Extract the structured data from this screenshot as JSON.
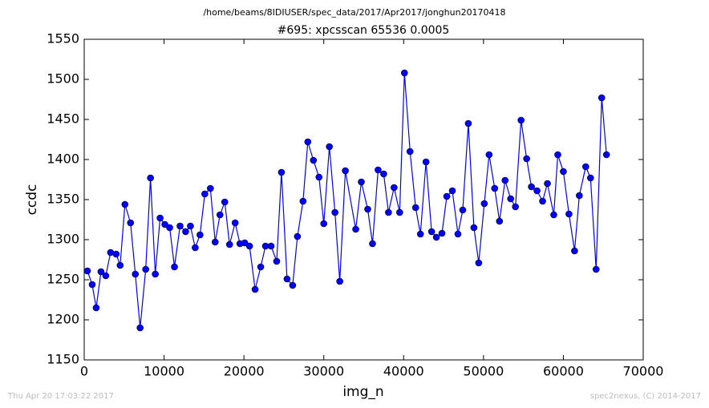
{
  "chart_data": {
    "type": "line",
    "path_title": "/home/beams/8IDIUSER/spec_data/2017/Apr2017/jonghun20170418",
    "title": "#695: xpcsscan 65536 0.0005",
    "x_label": "img_n",
    "y_label": "ccdc",
    "footer_left": "Thu Apr 20 17:03:22 2017",
    "footer_right": "spec2nexus, (C) 2014-2017",
    "xlim": [
      0,
      70000
    ],
    "ylim": [
      1150,
      1550
    ],
    "xticks": [
      0,
      10000,
      20000,
      30000,
      40000,
      50000,
      60000,
      70000
    ],
    "yticks": [
      1150,
      1200,
      1250,
      1300,
      1350,
      1400,
      1450,
      1500,
      1550
    ],
    "color": "#0000ff",
    "x": [
      400,
      1000,
      1500,
      2100,
      2700,
      3300,
      4000,
      4500,
      5100,
      5800,
      6400,
      7000,
      7700,
      8300,
      8900,
      9500,
      10100,
      10700,
      11300,
      12000,
      12700,
      13300,
      13900,
      14500,
      15100,
      15800,
      16400,
      17000,
      17600,
      18200,
      18900,
      19500,
      20100,
      20700,
      21400,
      22100,
      22700,
      23400,
      24100,
      24700,
      25400,
      26100,
      26700,
      27400,
      28000,
      28700,
      29400,
      30000,
      30700,
      31400,
      32000,
      32700,
      34000,
      34700,
      35500,
      36100,
      36800,
      37500,
      38100,
      38800,
      39500,
      40100,
      40800,
      41500,
      42100,
      42800,
      43500,
      44100,
      44800,
      45400,
      46100,
      46800,
      47400,
      48100,
      48800,
      49400,
      50100,
      50700,
      51400,
      52000,
      52700,
      53400,
      54000,
      54700,
      55400,
      56000,
      56700,
      57400,
      58000,
      58800,
      59300,
      60000,
      60700,
      61400,
      62000,
      62800,
      63400,
      64100,
      64800,
      65400
    ],
    "values": [
      1261,
      1244,
      1215,
      1260,
      1255,
      1284,
      1282,
      1268,
      1344,
      1321,
      1257,
      1190,
      1263,
      1377,
      1257,
      1327,
      1319,
      1315,
      1266,
      1317,
      1310,
      1317,
      1290,
      1306,
      1357,
      1364,
      1297,
      1331,
      1347,
      1294,
      1321,
      1295,
      1296,
      1292,
      1238,
      1266,
      1292,
      1292,
      1273,
      1384,
      1251,
      1243,
      1304,
      1348,
      1422,
      1399,
      1378,
      1320,
      1416,
      1334,
      1248,
      1386,
      1313,
      1372,
      1338,
      1295,
      1387,
      1382,
      1334,
      1365,
      1334,
      1508,
      1410,
      1340,
      1307,
      1397,
      1310,
      1303,
      1308,
      1354,
      1361,
      1307,
      1337,
      1445,
      1315,
      1271,
      1345,
      1406,
      1364,
      1323,
      1374,
      1351,
      1341,
      1449,
      1401,
      1366,
      1361,
      1348,
      1370,
      1331,
      1406,
      1385,
      1332,
      1286,
      1355,
      1391,
      1377,
      1263,
      1477,
      1406
    ]
  }
}
